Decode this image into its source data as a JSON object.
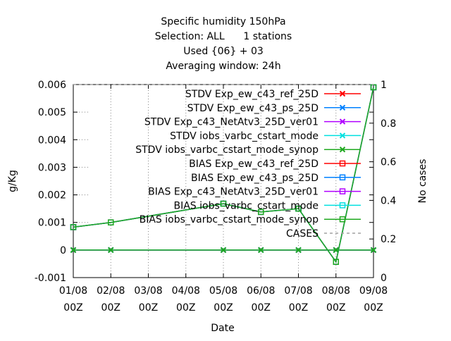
{
  "chart_data": {
    "type": "line",
    "title": [
      "Specific humidity 150hPa",
      "Selection: ALL      1 stations",
      "Used {06} + 03",
      "Averaging window: 24h"
    ],
    "xlabel": "Date",
    "ylabel": "g/Kg",
    "y2label": "No cases",
    "categories": [
      "01/08 00Z",
      "02/08 00Z",
      "03/08 00Z",
      "04/08 00Z",
      "05/08 00Z",
      "06/08 00Z",
      "07/08 00Z",
      "08/08 00Z",
      "09/08 00Z"
    ],
    "x_ticks": [
      {
        "top": "01/08",
        "bottom": "00Z"
      },
      {
        "top": "02/08",
        "bottom": "00Z"
      },
      {
        "top": "03/08",
        "bottom": "00Z"
      },
      {
        "top": "04/08",
        "bottom": "00Z"
      },
      {
        "top": "05/08",
        "bottom": "00Z"
      },
      {
        "top": "06/08",
        "bottom": "00Z"
      },
      {
        "top": "07/08",
        "bottom": "00Z"
      },
      {
        "top": "08/08",
        "bottom": "00Z"
      },
      {
        "top": "09/08",
        "bottom": "00Z"
      }
    ],
    "ylim": [
      -0.001,
      0.006
    ],
    "yticks": [
      "-0.001",
      "0",
      "0.001",
      "0.002",
      "0.003",
      "0.004",
      "0.005",
      "0.006"
    ],
    "y2lim": [
      0,
      1
    ],
    "y2ticks": [
      "0",
      "0.2",
      "0.4",
      "0.6",
      "0.8",
      "1"
    ],
    "grid": "vertical dotted",
    "legend_position": "top-right inside",
    "series": [
      {
        "name": "STDV Exp_ew_c43_ref_25D",
        "color": "#ff0000",
        "marker": "x",
        "axis": "y",
        "values": [
          0,
          0,
          null,
          null,
          0,
          0,
          0,
          0,
          0
        ]
      },
      {
        "name": "STDV Exp_ew_c43_ps_25D",
        "color": "#0080ff",
        "marker": "x",
        "axis": "y",
        "values": [
          0,
          0,
          null,
          null,
          0,
          0,
          0,
          0,
          0
        ]
      },
      {
        "name": "STDV Exp_c43_NetAtv3_25D_ver01",
        "color": "#b000ff",
        "marker": "x",
        "axis": "y",
        "values": [
          0,
          0,
          null,
          null,
          0,
          0,
          0,
          0,
          0
        ]
      },
      {
        "name": "STDV iobs_varbc_cstart_mode",
        "color": "#00e0e0",
        "marker": "x",
        "axis": "y",
        "values": [
          0,
          0,
          null,
          null,
          0,
          0,
          0,
          0,
          0
        ]
      },
      {
        "name": "STDV iobs_varbc_cstart_mode_synop",
        "color": "#1fa81f",
        "marker": "x",
        "axis": "y",
        "values": [
          0,
          0,
          null,
          null,
          0,
          0,
          0,
          0,
          0
        ]
      },
      {
        "name": "BIAS Exp_ew_c43_ref_25D",
        "color": "#ff0000",
        "marker": "square",
        "axis": "y",
        "values": [
          0.00083,
          0.001,
          null,
          null,
          0.00168,
          0.00138,
          0.0015,
          -0.00043,
          0.0059
        ]
      },
      {
        "name": "BIAS Exp_ew_c43_ps_25D",
        "color": "#0080ff",
        "marker": "square",
        "axis": "y",
        "values": [
          0.00083,
          0.001,
          null,
          null,
          0.00168,
          0.00138,
          0.0015,
          -0.00043,
          0.0059
        ]
      },
      {
        "name": "BIAS Exp_c43_NetAtv3_25D_ver01",
        "color": "#b000ff",
        "marker": "square",
        "axis": "y",
        "values": [
          0.00083,
          0.001,
          null,
          null,
          0.00168,
          0.00138,
          0.0015,
          -0.00043,
          0.0059
        ]
      },
      {
        "name": "BIAS iobs_varbc_cstart_mode",
        "color": "#00e0e0",
        "marker": "square",
        "axis": "y",
        "values": [
          0.00083,
          0.001,
          null,
          null,
          0.00168,
          0.00138,
          0.0015,
          -0.00043,
          0.0059
        ]
      },
      {
        "name": "BIAS iobs_varbc_cstart_mode_synop",
        "color": "#1fa81f",
        "marker": "square",
        "axis": "y",
        "values": [
          0.00083,
          0.001,
          null,
          null,
          0.00168,
          0.00138,
          0.0015,
          -0.00043,
          0.0059
        ]
      },
      {
        "name": "CASES",
        "color": "#a0a0a0",
        "marker": "none",
        "dash": true,
        "axis": "y2",
        "values": [
          1,
          1,
          null,
          null,
          1,
          1,
          1,
          1,
          1
        ]
      }
    ]
  }
}
